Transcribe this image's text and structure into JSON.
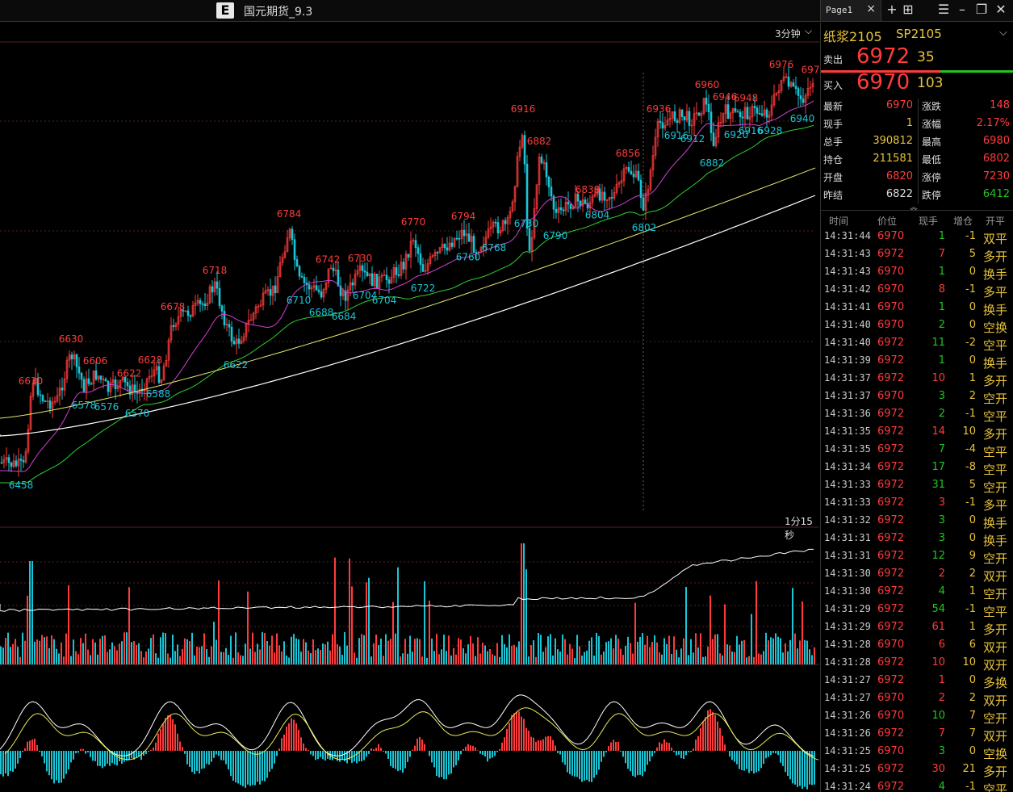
{
  "window": {
    "title": "国元期货_9.3",
    "tab_label": "Page1"
  },
  "chart": {
    "interval": "3分钟",
    "sub_interval": "1分15秒",
    "high_labels": [
      {
        "v": "6610",
        "i": 38
      },
      {
        "v": "6630",
        "i": 88
      },
      {
        "v": "6606",
        "i": 118
      },
      {
        "v": "6622",
        "i": 160
      },
      {
        "v": "6628",
        "i": 186
      },
      {
        "v": "6678",
        "i": 214
      },
      {
        "v": "6718",
        "i": 266
      },
      {
        "v": "6784",
        "i": 358
      },
      {
        "v": "6742",
        "i": 406
      },
      {
        "v": "6730",
        "i": 446
      },
      {
        "v": "6770",
        "i": 512
      },
      {
        "v": "6794",
        "i": 574
      },
      {
        "v": "6916",
        "i": 648
      },
      {
        "v": "6882",
        "i": 668
      },
      {
        "v": "6838",
        "i": 728
      },
      {
        "v": "6856",
        "i": 778
      },
      {
        "v": "6936",
        "i": 816
      },
      {
        "v": "6960",
        "i": 876
      },
      {
        "v": "6946",
        "i": 898
      },
      {
        "v": "6948",
        "i": 924
      },
      {
        "v": "6976",
        "i": 968
      },
      {
        "v": "697",
        "i": 1004
      }
    ],
    "low_labels": [
      {
        "v": "6458",
        "i": 26
      },
      {
        "v": "6578",
        "i": 104
      },
      {
        "v": "6576",
        "i": 132
      },
      {
        "v": "6570",
        "i": 170
      },
      {
        "v": "6588",
        "i": 196
      },
      {
        "v": "6622",
        "i": 292
      },
      {
        "v": "6710",
        "i": 370
      },
      {
        "v": "6688",
        "i": 398
      },
      {
        "v": "6684",
        "i": 426
      },
      {
        "v": "6704",
        "i": 452
      },
      {
        "v": "6704",
        "i": 476
      },
      {
        "v": "6722",
        "i": 524
      },
      {
        "v": "6760",
        "i": 580
      },
      {
        "v": "6768",
        "i": 612
      },
      {
        "v": "6730",
        "i": 652
      },
      {
        "v": "6790",
        "i": 688
      },
      {
        "v": "6804",
        "i": 740
      },
      {
        "v": "6802",
        "i": 798
      },
      {
        "v": "6916",
        "i": 838
      },
      {
        "v": "6912",
        "i": 858
      },
      {
        "v": "6882",
        "i": 882
      },
      {
        "v": "6920",
        "i": 912
      },
      {
        "v": "6916",
        "i": 930
      },
      {
        "v": "6928",
        "i": 954
      },
      {
        "v": "6940",
        "i": 994
      }
    ]
  },
  "quote": {
    "name": "纸浆2105",
    "code": "SP2105",
    "ask_label": "卖出",
    "ask_price": "6972",
    "ask_vol": "35",
    "bid_label": "买入",
    "bid_price": "6970",
    "bid_vol": "103",
    "stats": [
      {
        "l1": "最新",
        "v1": "6970",
        "c1": "#ff3b3b",
        "l2": "涨跌",
        "v2": "148",
        "c2": "#ff3b3b"
      },
      {
        "l1": "现手",
        "v1": "1",
        "c1": "#e9c43a",
        "l2": "涨幅",
        "v2": "2.17%",
        "c2": "#ff3b3b"
      },
      {
        "l1": "总手",
        "v1": "390812",
        "c1": "#e9c43a",
        "l2": "最高",
        "v2": "6980",
        "c2": "#ff3b3b"
      },
      {
        "l1": "持仓",
        "v1": "211581",
        "c1": "#e9c43a",
        "l2": "最低",
        "v2": "6802",
        "c2": "#ff3b3b"
      },
      {
        "l1": "开盘",
        "v1": "6820",
        "c1": "#ff3b3b",
        "l2": "涨停",
        "v2": "7230",
        "c2": "#ff3b3b"
      },
      {
        "l1": "昨结",
        "v1": "6822",
        "c1": "#dddddd",
        "l2": "跌停",
        "v2": "6412",
        "c2": "#22c422"
      }
    ],
    "tick_headers": [
      "时间",
      "价位",
      "现手",
      "增仓",
      "开平"
    ],
    "ticks": [
      {
        "time": "14:31:44",
        "price": "6970",
        "vol": "1",
        "oi": "-1",
        "type": "双平"
      },
      {
        "time": "14:31:43",
        "price": "6972",
        "vol": "7",
        "oi": "5",
        "type": "多开"
      },
      {
        "time": "14:31:43",
        "price": "6970",
        "vol": "1",
        "oi": "0",
        "type": "换手"
      },
      {
        "time": "14:31:42",
        "price": "6970",
        "vol": "8",
        "oi": "-1",
        "type": "多平"
      },
      {
        "time": "14:31:41",
        "price": "6970",
        "vol": "1",
        "oi": "0",
        "type": "换手"
      },
      {
        "time": "14:31:40",
        "price": "6970",
        "vol": "2",
        "oi": "0",
        "type": "空换"
      },
      {
        "time": "14:31:40",
        "price": "6972",
        "vol": "11",
        "oi": "-2",
        "type": "空平"
      },
      {
        "time": "14:31:39",
        "price": "6972",
        "vol": "1",
        "oi": "0",
        "type": "换手"
      },
      {
        "time": "14:31:37",
        "price": "6972",
        "vol": "10",
        "oi": "1",
        "type": "多开"
      },
      {
        "time": "14:31:37",
        "price": "6970",
        "vol": "3",
        "oi": "2",
        "type": "空开"
      },
      {
        "time": "14:31:36",
        "price": "6972",
        "vol": "2",
        "oi": "-1",
        "type": "空平"
      },
      {
        "time": "14:31:35",
        "price": "6972",
        "vol": "14",
        "oi": "10",
        "type": "多开"
      },
      {
        "time": "14:31:35",
        "price": "6972",
        "vol": "7",
        "oi": "-4",
        "type": "空平"
      },
      {
        "time": "14:31:34",
        "price": "6972",
        "vol": "17",
        "oi": "-8",
        "type": "空平"
      },
      {
        "time": "14:31:33",
        "price": "6972",
        "vol": "31",
        "oi": "5",
        "type": "空开"
      },
      {
        "time": "14:31:33",
        "price": "6972",
        "vol": "3",
        "oi": "-1",
        "type": "多平"
      },
      {
        "time": "14:31:32",
        "price": "6972",
        "vol": "3",
        "oi": "0",
        "type": "换手"
      },
      {
        "time": "14:31:31",
        "price": "6972",
        "vol": "3",
        "oi": "0",
        "type": "换手"
      },
      {
        "time": "14:31:31",
        "price": "6972",
        "vol": "12",
        "oi": "9",
        "type": "空开"
      },
      {
        "time": "14:31:30",
        "price": "6972",
        "vol": "2",
        "oi": "2",
        "type": "双开"
      },
      {
        "time": "14:31:30",
        "price": "6972",
        "vol": "4",
        "oi": "1",
        "type": "空开"
      },
      {
        "time": "14:31:29",
        "price": "6972",
        "vol": "54",
        "oi": "-1",
        "type": "空平"
      },
      {
        "time": "14:31:29",
        "price": "6972",
        "vol": "61",
        "oi": "1",
        "type": "多开"
      },
      {
        "time": "14:31:28",
        "price": "6970",
        "vol": "6",
        "oi": "6",
        "type": "双开"
      },
      {
        "time": "14:31:28",
        "price": "6972",
        "vol": "10",
        "oi": "10",
        "type": "双开"
      },
      {
        "time": "14:31:27",
        "price": "6972",
        "vol": "1",
        "oi": "0",
        "type": "多换"
      },
      {
        "time": "14:31:27",
        "price": "6970",
        "vol": "2",
        "oi": "2",
        "type": "双开"
      },
      {
        "time": "14:31:26",
        "price": "6970",
        "vol": "10",
        "oi": "7",
        "type": "空开"
      },
      {
        "time": "14:31:26",
        "price": "6972",
        "vol": "7",
        "oi": "7",
        "type": "双开"
      },
      {
        "time": "14:31:25",
        "price": "6970",
        "vol": "3",
        "oi": "0",
        "type": "空换"
      },
      {
        "time": "14:31:25",
        "price": "6972",
        "vol": "30",
        "oi": "21",
        "type": "多开"
      },
      {
        "time": "14:31:24",
        "price": "6972",
        "vol": "4",
        "oi": "-1",
        "type": "空平"
      }
    ]
  },
  "colors": {
    "up": "#ff3b3b",
    "down": "#19c6d6",
    "ma5": "#ffffff",
    "ma10": "#e9e95a",
    "ma20": "#d23fd2",
    "ma40": "#2ed12e",
    "ma60": "#e6e66b",
    "ma120": "#ffffff",
    "accent": "#e9c43a"
  }
}
